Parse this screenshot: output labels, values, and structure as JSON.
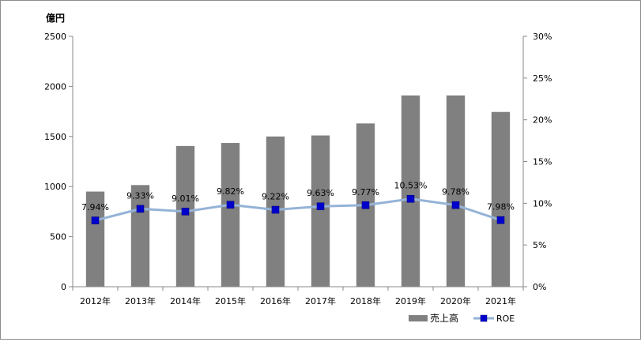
{
  "chart_data": {
    "type": "bar",
    "y_unit_label": "億円",
    "categories": [
      "2012年",
      "2013年",
      "2014年",
      "2015年",
      "2016年",
      "2017年",
      "2018年",
      "2019年",
      "2020年",
      "2021年"
    ],
    "series": [
      {
        "name": "売上高",
        "type": "bar",
        "axis": "left",
        "color": "#808080",
        "values": [
          950,
          1015,
          1405,
          1435,
          1500,
          1510,
          1630,
          1910,
          1910,
          1745
        ]
      },
      {
        "name": "ROE",
        "type": "line",
        "axis": "right",
        "color": "#95b3d7",
        "marker_color": "#0000cc",
        "values": [
          7.94,
          9.33,
          9.01,
          9.82,
          9.22,
          9.63,
          9.77,
          10.53,
          9.78,
          7.98
        ],
        "labels": [
          "7.94%",
          "9.33%",
          "9.01%",
          "9.82%",
          "9.22%",
          "9.63%",
          "9.77%",
          "10.53%",
          "9.78%",
          "7.98%"
        ]
      }
    ],
    "y_left": {
      "min": 0,
      "max": 2500,
      "ticks": [
        "0",
        "500",
        "1000",
        "1500",
        "2000",
        "2500"
      ]
    },
    "y_right": {
      "min": 0,
      "max": 30,
      "ticks": [
        "0%",
        "5%",
        "10%",
        "15%",
        "20%",
        "25%",
        "30%"
      ]
    },
    "grid": false,
    "legend_position": "bottom-right"
  }
}
